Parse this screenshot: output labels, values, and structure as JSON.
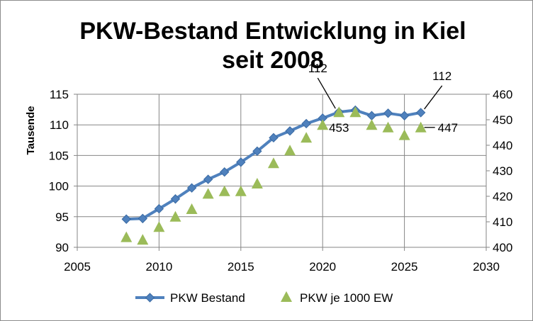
{
  "chart_data": {
    "type": "line",
    "title_line1": "PKW-Bestand Entwicklung in Kiel",
    "title_line2": "seit 2008",
    "ylabel": "Tausende",
    "xlim": [
      2005,
      2030
    ],
    "x_ticks": [
      "2005",
      "2010",
      "2015",
      "2020",
      "2025",
      "2030"
    ],
    "ylim_left": [
      90,
      115
    ],
    "y_ticks_left": [
      "90",
      "95",
      "100",
      "105",
      "110",
      "115"
    ],
    "ylim_right": [
      400,
      460
    ],
    "y_ticks_right": [
      "400",
      "410",
      "420",
      "430",
      "440",
      "450",
      "460"
    ],
    "grid": true,
    "legend_position": "bottom",
    "series": [
      {
        "name": "PKW Bestand",
        "axis": "left",
        "style": "line-diamond",
        "color": "#4f81bd",
        "x": [
          2008,
          2009,
          2010,
          2011,
          2012,
          2013,
          2014,
          2015,
          2016,
          2017,
          2018,
          2019,
          2020,
          2021,
          2022,
          2023,
          2024,
          2025,
          2026
        ],
        "y": [
          94.6,
          94.7,
          96.3,
          97.9,
          99.7,
          101.1,
          102.3,
          103.9,
          105.7,
          107.9,
          109.0,
          110.2,
          111.1,
          112.1,
          112.4,
          111.5,
          111.9,
          111.5,
          112.0
        ]
      },
      {
        "name": "PKW je 1000 EW",
        "axis": "right",
        "style": "triangle",
        "color": "#9bbb59",
        "x": [
          2008,
          2009,
          2010,
          2011,
          2012,
          2013,
          2014,
          2015,
          2016,
          2017,
          2018,
          2019,
          2020,
          2021,
          2022,
          2023,
          2024,
          2025,
          2026
        ],
        "y": [
          404,
          403,
          408,
          412,
          415,
          421,
          422,
          422,
          425,
          433,
          438,
          443,
          448,
          453,
          453,
          448,
          447,
          444,
          447
        ]
      }
    ],
    "annotations": [
      {
        "text": "112",
        "series": 0,
        "point": 13
      },
      {
        "text": "453",
        "series": 1,
        "point": 13
      },
      {
        "text": "112",
        "series": 0,
        "point": 18
      },
      {
        "text": "447",
        "series": 1,
        "point": 18
      }
    ]
  }
}
